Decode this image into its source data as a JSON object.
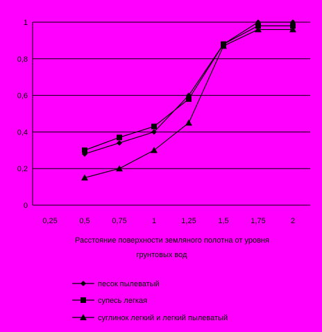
{
  "chart_data": {
    "type": "line",
    "title": "",
    "xlabel": "Расстояние поверхности земляного полотна от уровня грунтовых вод",
    "ylabel": "",
    "categories": [
      "0,25",
      "0,5",
      "0,75",
      "1",
      "1,25",
      "1,5",
      "1,75",
      "2"
    ],
    "y_ticks": [
      "0",
      "0,2",
      "0,4",
      "0,6",
      "0,8",
      "1"
    ],
    "ylim": [
      0,
      1
    ],
    "grid": "horizontal",
    "legend_position": "bottom",
    "series": [
      {
        "name": "песок пылеватый",
        "marker": "diamond",
        "values": [
          null,
          0.28,
          0.34,
          0.4,
          0.6,
          0.88,
          1.0,
          1.0
        ]
      },
      {
        "name": "супесь легкая",
        "marker": "square",
        "values": [
          null,
          0.3,
          0.37,
          0.43,
          0.58,
          0.88,
          0.98,
          0.98
        ]
      },
      {
        "name": "суглинок легкий и легкий пылеватый",
        "marker": "triangle",
        "values": [
          null,
          0.15,
          0.2,
          0.3,
          0.45,
          0.87,
          0.96,
          0.96
        ]
      }
    ]
  }
}
